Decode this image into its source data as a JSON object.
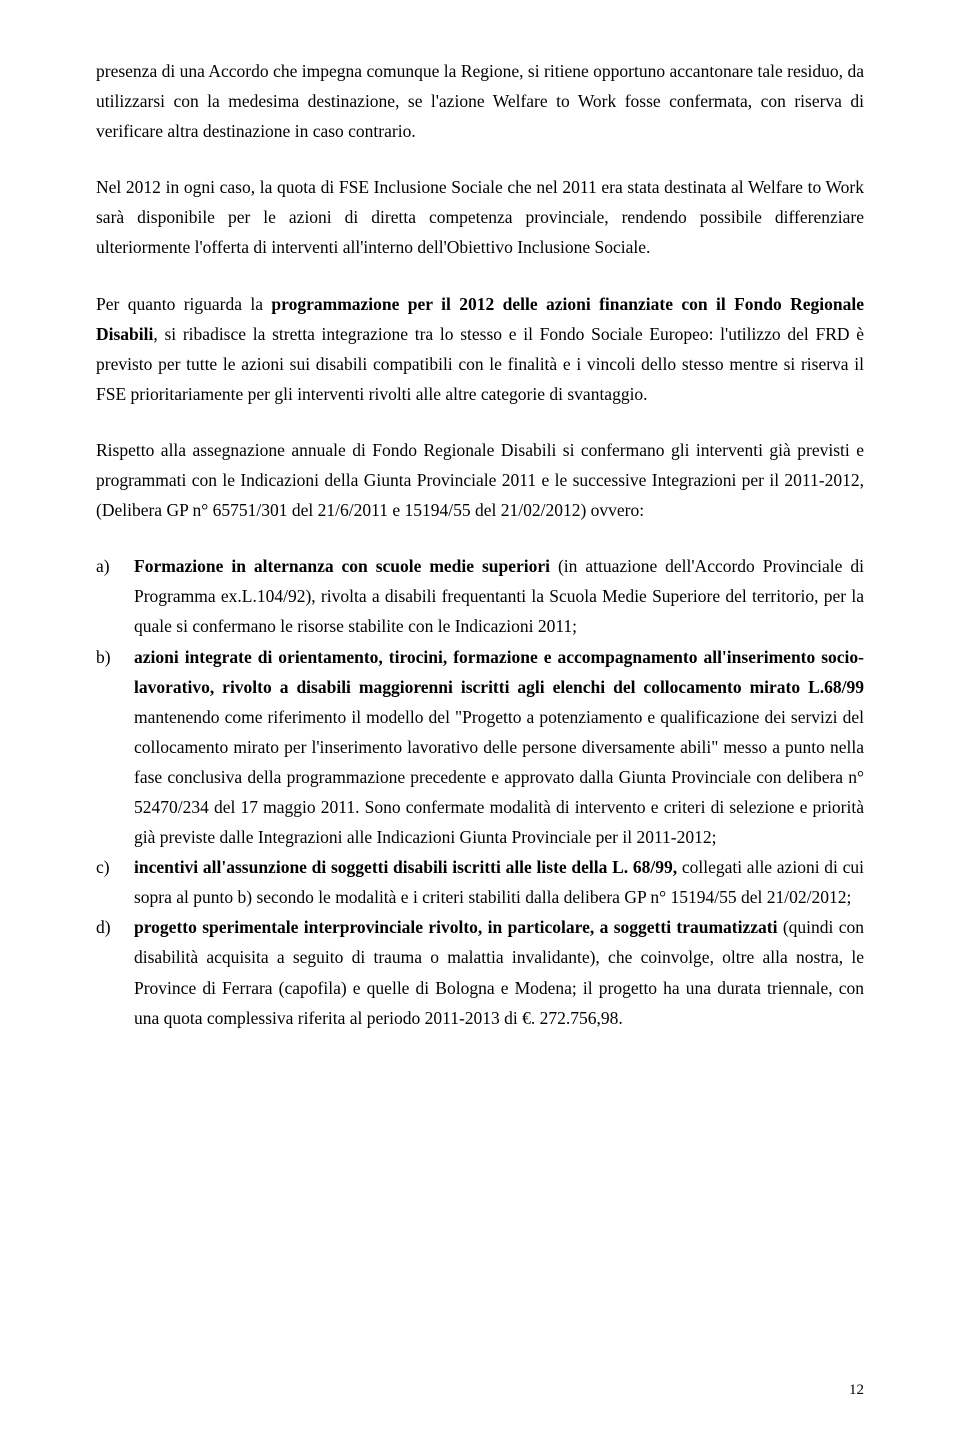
{
  "paragraphs": {
    "p1": "presenza di una Accordo che impegna comunque la Regione, si ritiene opportuno accantonare tale residuo, da utilizzarsi con la medesima destinazione, se l'azione Welfare to Work fosse confermata, con riserva di verificare altra destinazione in caso contrario.",
    "p2": "Nel 2012 in ogni caso, la quota di FSE Inclusione Sociale che nel 2011 era stata destinata al Welfare to Work sarà disponibile per le azioni di diretta competenza provinciale, rendendo possibile differenziare ulteriormente l'offerta di interventi all'interno dell'Obiettivo Inclusione Sociale.",
    "p3_pre": "Per quanto riguarda la ",
    "p3_bold": "programmazione per il 2012 delle azioni finanziate con il Fondo Regionale Disabili",
    "p3_post": ", si ribadisce la stretta integrazione tra lo stesso e il Fondo Sociale Europeo:  l'utilizzo del FRD è previsto per tutte le azioni sui disabili compatibili con le finalità e i vincoli dello stesso mentre si riserva il FSE  prioritariamente per gli interventi rivolti alle altre categorie di svantaggio.",
    "p4": "Rispetto alla assegnazione annuale di Fondo Regionale Disabili si confermano gli interventi già previsti e programmati con le Indicazioni della Giunta Provinciale 2011 e le successive  Integrazioni per il 2011-2012,  (Delibera GP n° 65751/301 del 21/6/2011 e 15194/55 del 21/02/2012) ovvero:"
  },
  "list": {
    "a": {
      "marker": "a)",
      "bold": "Formazione in alternanza con scuole medie superiori",
      "rest": " (in attuazione dell'Accordo Provinciale di Programma ex.L.104/92), rivolta a disabili frequentanti la Scuola Medie Superiore del territorio, per la quale si confermano le risorse stabilite con le Indicazioni 2011;"
    },
    "b": {
      "marker": "b)",
      "bold1": "azioni integrate di orientamento, tirocini, formazione e accompagnamento all'inserimento socio-lavorativo, rivolto a disabili maggiorenni iscritti agli elenchi del collocamento mirato L.68/99",
      "rest": " mantenendo come riferimento il modello del \"Progetto a potenziamento e qualificazione dei servizi del collocamento mirato per l'inserimento lavorativo delle persone diversamente abili\" messo a punto nella fase conclusiva della programmazione precedente e approvato dalla Giunta Provinciale con delibera n° 52470/234 del 17 maggio 2011. Sono confermate modalità di intervento e criteri di selezione e priorità già previste dalle Integrazioni alle Indicazioni Giunta Provinciale per il 2011-2012;"
    },
    "c": {
      "marker": "c)",
      "bold": "incentivi all'assunzione di soggetti disabili iscritti alle liste della L. 68/99,",
      "rest": " collegati alle azioni di cui sopra al punto b) secondo le modalità e i criteri stabiliti dalla delibera GP n° 15194/55 del 21/02/2012;"
    },
    "d": {
      "marker": "d)",
      "bold": "progetto sperimentale interprovinciale rivolto, in particolare, a soggetti traumatizzati",
      "rest": " (quindi con disabilità acquisita a seguito di trauma o malattia invalidante), che coinvolge, oltre alla nostra, le Province di Ferrara (capofila) e quelle di Bologna e  Modena; il progetto ha una durata triennale, con una quota complessiva riferita al periodo 2011-2013 di €. 272.756,98."
    }
  },
  "page_number": "12"
}
